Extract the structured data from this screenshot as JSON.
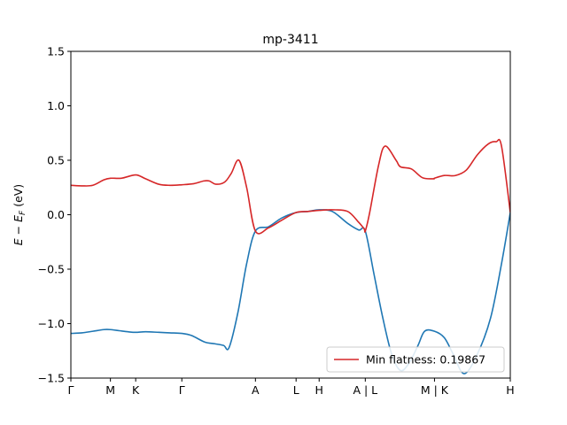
{
  "chart_data": {
    "type": "line",
    "title": "mp-3411",
    "xlabel": "",
    "ylabel": "E − E_F (eV)",
    "ylabel_parts": {
      "base": "E − E",
      "sub": "F",
      "unit": " (eV)"
    },
    "ylim": [
      -1.5,
      1.5
    ],
    "xlim": [
      0,
      20.0
    ],
    "y_ticks": [
      -1.5,
      -1.0,
      -0.5,
      0.0,
      0.5,
      1.0,
      1.5
    ],
    "y_tick_labels": [
      "−1.5",
      "−1.0",
      "−0.5",
      "0.0",
      "0.5",
      "1.0",
      "1.5"
    ],
    "x_ticks": [
      0,
      1.8,
      2.95,
      5.05,
      8.4,
      10.25,
      11.3,
      13.4,
      16.55,
      20.0
    ],
    "x_tick_labels": [
      "Γ",
      "M",
      "K",
      "Γ",
      "A",
      "L",
      "H",
      "A | L",
      "M | K",
      "H"
    ],
    "grid": false,
    "legend": {
      "position": "lower right",
      "entries": [
        "Min flatness: 0.19867"
      ]
    },
    "colors": {
      "series_1": "#1f77b4",
      "series_2": "#d62728"
    },
    "series": [
      {
        "color": "#1f77b4",
        "x": [
          0,
          0.5,
          1.0,
          1.5,
          1.8,
          2.2,
          2.6,
          2.95,
          3.4,
          4.0,
          4.5,
          5.05,
          5.5,
          6.1,
          6.55,
          6.95,
          7.2,
          7.6,
          8.0,
          8.4,
          9.0,
          9.6,
          10.25,
          10.8,
          11.3,
          11.9,
          12.6,
          13.1,
          13.4,
          13.8,
          14.2,
          14.6,
          15.0,
          15.4,
          15.8,
          16.1,
          16.55,
          17.0,
          17.4,
          17.9,
          18.5,
          19.1,
          19.6,
          20.0
        ],
        "y": [
          -1.09,
          -1.085,
          -1.07,
          -1.055,
          -1.055,
          -1.065,
          -1.075,
          -1.08,
          -1.075,
          -1.08,
          -1.085,
          -1.09,
          -1.11,
          -1.17,
          -1.185,
          -1.2,
          -1.22,
          -0.9,
          -0.45,
          -0.15,
          -0.11,
          -0.03,
          0.02,
          0.03,
          0.045,
          0.03,
          -0.08,
          -0.14,
          -0.15,
          -0.55,
          -0.95,
          -1.28,
          -1.43,
          -1.36,
          -1.2,
          -1.07,
          -1.07,
          -1.13,
          -1.28,
          -1.46,
          -1.28,
          -0.95,
          -0.45,
          0.02
        ]
      },
      {
        "name": "Min flatness: 0.19867",
        "color": "#d62728",
        "x": [
          0,
          0.5,
          1.0,
          1.5,
          1.8,
          2.3,
          2.95,
          3.4,
          4.0,
          4.5,
          5.05,
          5.6,
          6.05,
          6.3,
          6.6,
          7.0,
          7.3,
          7.65,
          8.0,
          8.4,
          9.0,
          9.6,
          10.25,
          10.8,
          11.3,
          11.9,
          12.6,
          13.1,
          13.35,
          13.4,
          13.6,
          14.0,
          14.3,
          14.8,
          15.0,
          15.5,
          16.0,
          16.5,
          16.55,
          17.0,
          17.5,
          18.0,
          18.5,
          19.0,
          19.35,
          19.6,
          20.0
        ],
        "y": [
          0.27,
          0.265,
          0.27,
          0.32,
          0.335,
          0.335,
          0.365,
          0.33,
          0.28,
          0.27,
          0.275,
          0.285,
          0.31,
          0.31,
          0.28,
          0.3,
          0.38,
          0.5,
          0.25,
          -0.15,
          -0.12,
          -0.05,
          0.02,
          0.03,
          0.04,
          0.045,
          0.03,
          -0.07,
          -0.13,
          -0.15,
          0.02,
          0.45,
          0.63,
          0.5,
          0.44,
          0.42,
          0.34,
          0.33,
          0.335,
          0.36,
          0.36,
          0.41,
          0.55,
          0.65,
          0.67,
          0.63,
          0.02
        ]
      }
    ]
  }
}
